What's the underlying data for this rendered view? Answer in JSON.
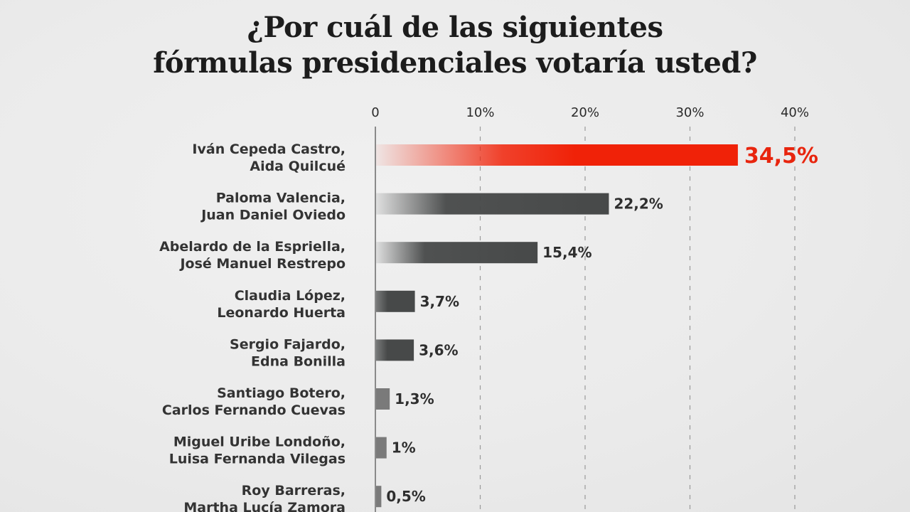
{
  "title": {
    "line1": "¿Por cuál de las siguientes",
    "line2": "fórmulas presidenciales votaría usted?"
  },
  "colors": {
    "highlight": "#f02208",
    "dark": "#474949",
    "mid": "#7a7a7a",
    "axis": "#8a8a8a",
    "grid": "#9a9a9a"
  },
  "chart_data": {
    "type": "bar",
    "orientation": "horizontal",
    "title": "¿Por cuál de las siguientes fórmulas presidenciales votaría usted?",
    "xlabel": "",
    "ylabel": "",
    "xlim": [
      0,
      40
    ],
    "xticks": [
      0,
      10,
      20,
      30,
      40
    ],
    "xtick_labels": [
      "0",
      "10%",
      "20%",
      "30%",
      "40%"
    ],
    "xaxis_position": "top",
    "grid": "vertical dashed",
    "categories": [
      [
        "Iván Cepeda Castro,",
        "Aida Quilcué"
      ],
      [
        "Paloma Valencia,",
        "Juan Daniel Oviedo"
      ],
      [
        "Abelardo de la Espriella,",
        "José Manuel Restrepo"
      ],
      [
        "Claudia López,",
        "Leonardo Huerta"
      ],
      [
        "Sergio Fajardo,",
        "Edna Bonilla"
      ],
      [
        "Santiago Botero,",
        "Carlos Fernando Cuevas"
      ],
      [
        "Miguel Uribe Londoño,",
        "Luisa Fernanda Vilegas"
      ],
      [
        "Roy Barreras,",
        "Martha Lucía Zamora"
      ]
    ],
    "values": [
      34.5,
      22.2,
      15.4,
      3.7,
      3.6,
      1.3,
      1.0,
      0.5
    ],
    "value_labels": [
      "34,5%",
      "22,2%",
      "15,4%",
      "3,7%",
      "3,6%",
      "1,3%",
      "1%",
      "0,5%"
    ],
    "bar_styles": [
      "highlight",
      "dark",
      "dark",
      "dark",
      "dark",
      "mid",
      "mid",
      "mid"
    ]
  }
}
